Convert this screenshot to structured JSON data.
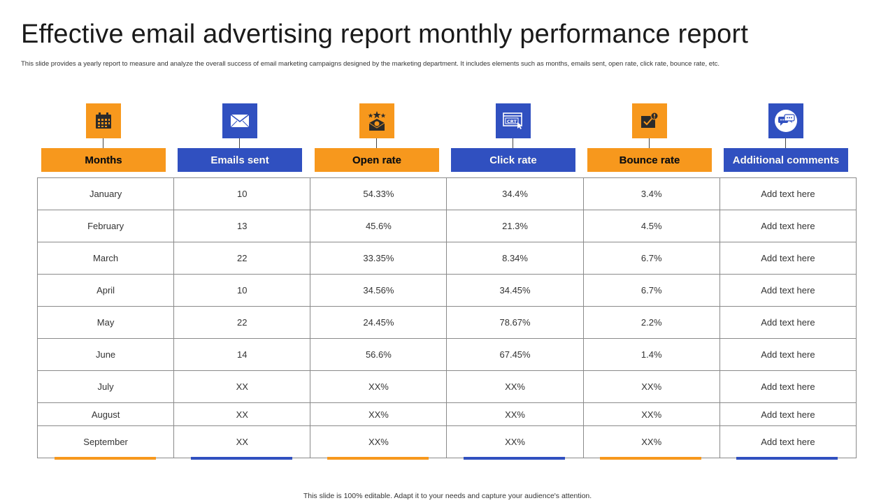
{
  "page": {
    "title": "Effective email advertising report monthly performance report",
    "subtitle": "This slide provides a yearly report to measure and analyze the overall success of email marketing campaigns designed by the marketing department.  It includes elements such as months,  emails sent, open rate, click rate, bounce rate, etc.",
    "footer": "This slide is 100% editable.  Adapt it to your needs and capture your audience's attention."
  },
  "colors": {
    "orange": "#f7981d",
    "blue": "#3050c0"
  },
  "columns": [
    {
      "label": "Months",
      "icon": "calendar-icon",
      "color": "orange"
    },
    {
      "label": "Emails sent",
      "icon": "envelope-icon",
      "color": "blue"
    },
    {
      "label": "Open rate",
      "icon": "open-envelope-stars-icon",
      "color": "orange"
    },
    {
      "label": "Click rate",
      "icon": "browser-click-icon",
      "color": "blue"
    },
    {
      "label": "Bounce rate",
      "icon": "mail-alert-icon",
      "color": "orange"
    },
    {
      "label": "Additional comments",
      "icon": "chat-bubbles-icon",
      "color": "blue"
    }
  ],
  "rows": [
    [
      "January",
      "10",
      "54.33%",
      "34.4%",
      "3.4%",
      "Add text here"
    ],
    [
      "February",
      "13",
      "45.6%",
      "21.3%",
      "4.5%",
      "Add text here"
    ],
    [
      "March",
      "22",
      "33.35%",
      "8.34%",
      "6.7%",
      "Add text here"
    ],
    [
      "April",
      "10",
      "34.56%",
      "34.45%",
      "6.7%",
      "Add text here"
    ],
    [
      "May",
      "22",
      "24.45%",
      "78.67%",
      "2.2%",
      "Add text here"
    ],
    [
      "June",
      "14",
      "56.6%",
      "67.45%",
      "1.4%",
      "Add text here"
    ],
    [
      "July",
      "XX",
      "XX%",
      "XX%",
      "XX%",
      "Add text here"
    ],
    [
      "August",
      "XX",
      "XX%",
      "XX%",
      "XX%",
      "Add text here"
    ],
    [
      "September",
      "XX",
      "XX%",
      "XX%",
      "XX%",
      "Add text here"
    ]
  ]
}
